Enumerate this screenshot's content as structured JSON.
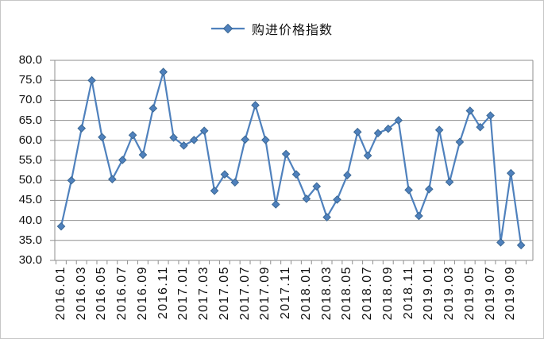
{
  "chart_data": {
    "type": "line",
    "legend_label": "购进价格指数",
    "legend_position": "top",
    "marker": "diamond",
    "series_color": "#4F81BD",
    "marker_border_color": "#3A6793",
    "grid": true,
    "ylim": [
      30,
      80
    ],
    "y_tick_step": 5,
    "y_tick_labels": [
      "80.0",
      "75.0",
      "70.0",
      "65.0",
      "60.0",
      "55.0",
      "50.0",
      "45.0",
      "40.0",
      "35.0",
      "30.0"
    ],
    "x_axis_labels": [
      "2016.01",
      "2016.03",
      "2016.05",
      "2016.07",
      "2016.09",
      "2016.11",
      "2017.01",
      "2017.03",
      "2017.05",
      "2017.07",
      "2017.09",
      "2017.11",
      "2018.01",
      "2018.03",
      "2018.05",
      "2018.07",
      "2018.09",
      "2018.11",
      "2019.01",
      "2019.03",
      "2019.05",
      "2019.07",
      "2019.09"
    ],
    "categories": [
      "2016.01",
      "2016.02",
      "2016.03",
      "2016.04",
      "2016.05",
      "2016.06",
      "2016.07",
      "2016.08",
      "2016.09",
      "2016.10",
      "2016.11",
      "2016.12",
      "2017.01",
      "2017.02",
      "2017.03",
      "2017.04",
      "2017.05",
      "2017.06",
      "2017.07",
      "2017.08",
      "2017.09",
      "2017.10",
      "2017.11",
      "2017.12",
      "2018.01",
      "2018.02",
      "2018.03",
      "2018.04",
      "2018.05",
      "2018.06",
      "2018.07",
      "2018.08",
      "2018.09",
      "2018.10",
      "2018.11",
      "2018.12",
      "2019.01",
      "2019.02",
      "2019.03",
      "2019.04",
      "2019.05",
      "2019.06",
      "2019.07",
      "2019.08",
      "2019.09",
      "2019.10"
    ],
    "values": [
      38.5,
      50.0,
      63.0,
      75.0,
      60.8,
      50.3,
      55.1,
      61.3,
      56.4,
      68.0,
      77.1,
      60.7,
      58.7,
      60.1,
      62.4,
      47.4,
      51.5,
      49.5,
      60.2,
      68.8,
      60.1,
      44.0,
      56.6,
      51.5,
      45.4,
      48.5,
      40.8,
      45.2,
      51.3,
      62.1,
      56.2,
      61.8,
      62.9,
      65.0,
      47.6,
      41.1,
      47.8,
      62.6,
      49.6,
      59.6,
      67.4,
      63.3,
      66.2,
      34.5,
      51.8,
      33.8
    ],
    "colors": {
      "gridline": "#8f8f8f",
      "axis": "#8f8f8f",
      "text": "#111111",
      "frame_border": "#c6c6c6",
      "background": "#ffffff"
    }
  }
}
